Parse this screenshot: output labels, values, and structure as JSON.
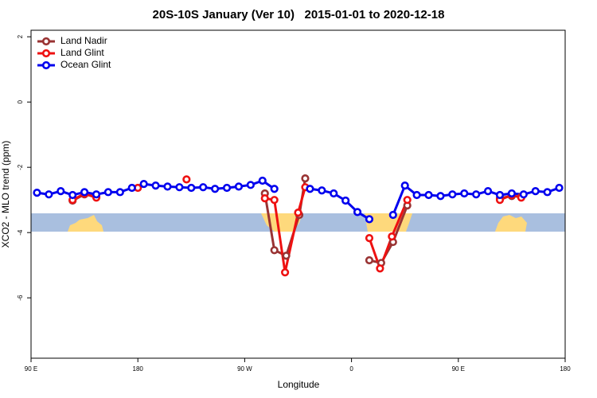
{
  "chart_data": {
    "type": "line",
    "title": "20S-10S January (Ver 10)   2015-01-01 to 2020-12-18",
    "xlabel": "Longitude",
    "ylabel": "XCO2 - MLO trend (ppm)",
    "xlim": [
      90,
      540
    ],
    "ylim": [
      -7.85,
      2.2
    ],
    "xticks": [
      {
        "value": 90,
        "label": "90 E"
      },
      180,
      {
        "value": 270,
        "label": "90 W"
      },
      {
        "value": 360,
        "label": "0"
      },
      {
        "value": 450,
        "label": "90 E"
      },
      {
        "value": 540,
        "label": "180"
      }
    ],
    "yticks": [
      -6,
      -4,
      -2,
      0,
      2
    ],
    "legend": "top-left",
    "series": [
      {
        "name": "Land Nadir",
        "color": "#993333",
        "x": [
          125,
          135,
          145,
          null,
          287,
          295,
          305,
          316,
          321,
          null,
          375,
          385,
          395,
          407,
          null,
          485,
          495,
          503
        ],
        "values": [
          -3.02,
          -2.83,
          -2.9,
          null,
          -2.8,
          -4.54,
          -4.71,
          -3.46,
          -2.34,
          null,
          -4.85,
          -4.93,
          -4.29,
          -3.17,
          null,
          -2.95,
          -2.88,
          -2.9
        ]
      },
      {
        "name": "Land Glint",
        "color": "#ee1111",
        "x": [
          125,
          135,
          145,
          null,
          180,
          null,
          221,
          null,
          287,
          295,
          304,
          315,
          321,
          null,
          375,
          384,
          394,
          407,
          null,
          485,
          495,
          503
        ],
        "values": [
          -3.0,
          -2.81,
          -2.93,
          null,
          -2.63,
          null,
          -2.37,
          null,
          -2.95,
          -3.0,
          -5.22,
          -3.39,
          -2.61,
          null,
          -4.17,
          -5.1,
          -4.12,
          -3.0,
          null,
          -3.0,
          -2.85,
          -2.93
        ]
      },
      {
        "name": "Ocean Glint",
        "color": "#0000ee",
        "x": [
          95,
          105,
          115,
          125,
          135,
          145,
          155,
          165,
          175,
          185,
          195,
          205,
          215,
          225,
          235,
          245,
          255,
          265,
          275,
          285,
          295,
          null,
          325,
          335,
          345,
          355,
          365,
          375,
          null,
          395,
          405,
          415,
          425,
          435,
          445,
          455,
          465,
          475,
          485,
          495,
          505,
          515,
          525,
          535
        ],
        "values": [
          -2.78,
          -2.83,
          -2.73,
          -2.85,
          -2.76,
          -2.83,
          -2.76,
          -2.76,
          -2.63,
          -2.51,
          -2.56,
          -2.59,
          -2.61,
          -2.63,
          -2.61,
          -2.66,
          -2.63,
          -2.59,
          -2.54,
          -2.41,
          -2.66,
          null,
          -2.66,
          -2.71,
          -2.8,
          -3.02,
          -3.37,
          -3.59,
          null,
          -3.46,
          -2.56,
          -2.85,
          -2.85,
          -2.88,
          -2.83,
          -2.8,
          -2.83,
          -2.73,
          -2.85,
          -2.8,
          -2.83,
          -2.73,
          -2.76,
          -2.63
        ]
      }
    ]
  }
}
